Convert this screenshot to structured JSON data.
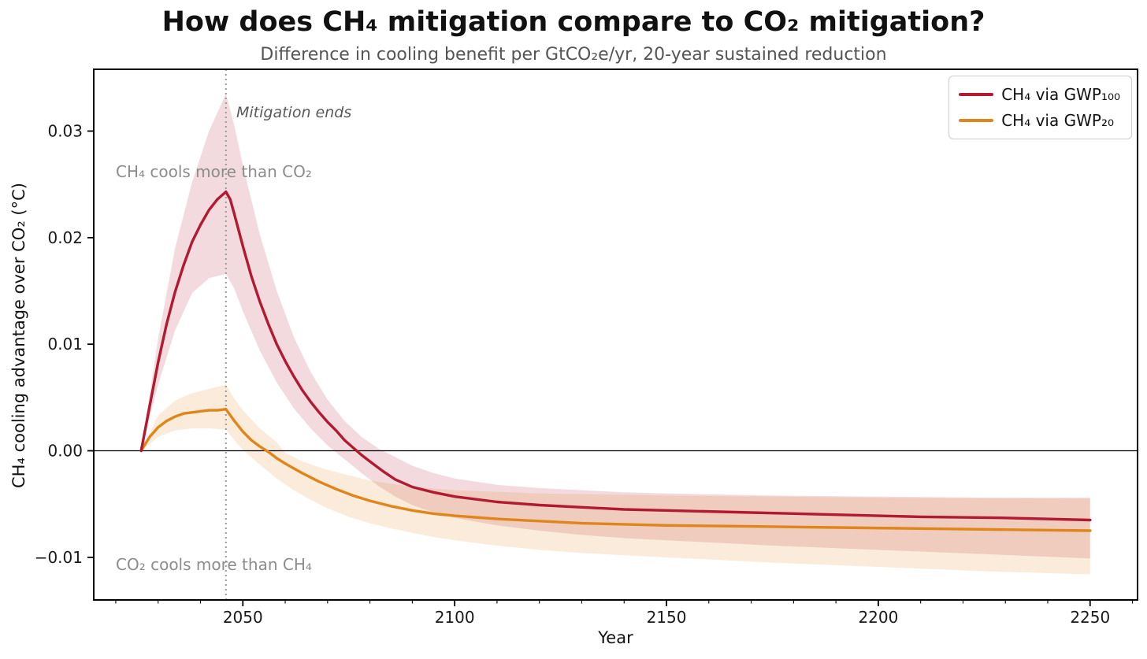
{
  "header": {
    "title": "How does CH₄ mitigation compare to CO₂ mitigation?",
    "subtitle": "Difference in cooling benefit per GtCO₂e/yr, 20-year sustained reduction"
  },
  "legend": {
    "items": [
      {
        "label": "CH₄ via GWP₁₀₀",
        "color": "#b11a30"
      },
      {
        "label": "CH₄ via GWP₂₀",
        "color": "#e08519"
      }
    ]
  },
  "annotations": {
    "mitigation_ends": "Mitigation ends",
    "ch4_cools": "CH₄ cools more than CO₂",
    "co2_cools": "CO₂ cools more than CH₄"
  },
  "colors": {
    "gwp100_line": "#b11a30",
    "gwp20_line": "#e08519",
    "gwp100_band": "rgba(177,26,48,0.16)",
    "gwp20_band": "rgba(224,133,25,0.16)",
    "vline": "#999999",
    "zero_line": "#000000",
    "spine": "#000000",
    "tick_label": "#1a1a1a"
  },
  "chart_data": {
    "type": "line",
    "title": "How does CH₄ mitigation compare to CO₂ mitigation?",
    "subtitle": "Difference in cooling benefit per GtCO₂e/yr, 20-year sustained reduction",
    "xlabel": "Year",
    "ylabel": "CH₄ cooling advantage over CO₂ (°C)",
    "xlim": [
      2014.8,
      2261.2
    ],
    "ylim": [
      -0.014,
      0.0358
    ],
    "grid": false,
    "legend_position": "upper right",
    "xticks": [
      {
        "v": 2050,
        "label": "2050"
      },
      {
        "v": 2100,
        "label": "2100"
      },
      {
        "v": 2150,
        "label": "2150"
      },
      {
        "v": 2200,
        "label": "2200"
      },
      {
        "v": 2250,
        "label": "2250"
      }
    ],
    "x_minor_ticks": [
      2020,
      2030,
      2040,
      2060,
      2070,
      2080,
      2090,
      2110,
      2120,
      2130,
      2140,
      2160,
      2170,
      2180,
      2190,
      2210,
      2220,
      2230,
      2240,
      2260
    ],
    "yticks": [
      {
        "v": 0.03,
        "label": "0.03"
      },
      {
        "v": 0.02,
        "label": "0.02"
      },
      {
        "v": 0.01,
        "label": "0.01"
      },
      {
        "v": 0.0,
        "label": "0.00"
      },
      {
        "v": -0.01,
        "label": "−0.01"
      }
    ],
    "zero_line": 0.0,
    "vline": {
      "x": 2046,
      "label": "Mitigation ends",
      "style": "dotted"
    },
    "series": [
      {
        "name": "CH₄ via GWP₁₀₀",
        "color": "#b11a30",
        "band_color": "rgba(177,26,48,0.16)",
        "points": [
          [
            2026,
            0.0
          ],
          [
            2028,
            0.0042
          ],
          [
            2030,
            0.0083
          ],
          [
            2032,
            0.0119
          ],
          [
            2034,
            0.0149
          ],
          [
            2036,
            0.0174
          ],
          [
            2038,
            0.0196
          ],
          [
            2040,
            0.0212
          ],
          [
            2042,
            0.0226
          ],
          [
            2044,
            0.0236
          ],
          [
            2046,
            0.0243
          ],
          [
            2047,
            0.0236
          ],
          [
            2048,
            0.0222
          ],
          [
            2050,
            0.0192
          ],
          [
            2052,
            0.0164
          ],
          [
            2054,
            0.014
          ],
          [
            2056,
            0.0119
          ],
          [
            2058,
            0.01
          ],
          [
            2060,
            0.0084
          ],
          [
            2062,
            0.007
          ],
          [
            2064,
            0.0057
          ],
          [
            2066,
            0.0046
          ],
          [
            2068,
            0.0036
          ],
          [
            2070,
            0.0027
          ],
          [
            2072,
            0.0019
          ],
          [
            2074,
            0.001
          ],
          [
            2076,
            0.0003
          ],
          [
            2078,
            -0.0004
          ],
          [
            2080,
            -0.001
          ],
          [
            2083,
            -0.0019
          ],
          [
            2086,
            -0.0027
          ],
          [
            2090,
            -0.0034
          ],
          [
            2095,
            -0.0039
          ],
          [
            2100,
            -0.0043
          ],
          [
            2110,
            -0.0048
          ],
          [
            2120,
            -0.0051
          ],
          [
            2130,
            -0.0053
          ],
          [
            2140,
            -0.0055
          ],
          [
            2150,
            -0.0056
          ],
          [
            2170,
            -0.0058
          ],
          [
            2190,
            -0.006
          ],
          [
            2210,
            -0.0062
          ],
          [
            2230,
            -0.0063
          ],
          [
            2250,
            -0.0065
          ]
        ],
        "band_upper": [
          [
            2026,
            0.0
          ],
          [
            2030,
            0.0105
          ],
          [
            2034,
            0.019
          ],
          [
            2038,
            0.0252
          ],
          [
            2042,
            0.03
          ],
          [
            2046,
            0.0335
          ],
          [
            2048,
            0.0305
          ],
          [
            2050,
            0.0268
          ],
          [
            2054,
            0.0203
          ],
          [
            2058,
            0.015
          ],
          [
            2062,
            0.0107
          ],
          [
            2066,
            0.0074
          ],
          [
            2070,
            0.0048
          ],
          [
            2074,
            0.0028
          ],
          [
            2078,
            0.0013
          ],
          [
            2082,
            0.0002
          ],
          [
            2086,
            -0.0006
          ],
          [
            2090,
            -0.0014
          ],
          [
            2095,
            -0.0021
          ],
          [
            2100,
            -0.0026
          ],
          [
            2110,
            -0.0032
          ],
          [
            2120,
            -0.0035
          ],
          [
            2130,
            -0.0037
          ],
          [
            2140,
            -0.0039
          ],
          [
            2150,
            -0.004
          ],
          [
            2175,
            -0.0042
          ],
          [
            2200,
            -0.0043
          ],
          [
            2225,
            -0.0044
          ],
          [
            2250,
            -0.0044
          ]
        ],
        "band_lower": [
          [
            2026,
            0.0
          ],
          [
            2030,
            0.0062
          ],
          [
            2034,
            0.0113
          ],
          [
            2038,
            0.0148
          ],
          [
            2042,
            0.0162
          ],
          [
            2046,
            0.0166
          ],
          [
            2048,
            0.0152
          ],
          [
            2050,
            0.0131
          ],
          [
            2054,
            0.0094
          ],
          [
            2058,
            0.0064
          ],
          [
            2062,
            0.004
          ],
          [
            2066,
            0.0021
          ],
          [
            2070,
            0.0005
          ],
          [
            2074,
            -0.0008
          ],
          [
            2078,
            -0.0021
          ],
          [
            2082,
            -0.0033
          ],
          [
            2086,
            -0.0043
          ],
          [
            2090,
            -0.0051
          ],
          [
            2095,
            -0.0058
          ],
          [
            2100,
            -0.0063
          ],
          [
            2110,
            -0.007
          ],
          [
            2120,
            -0.0075
          ],
          [
            2130,
            -0.0079
          ],
          [
            2140,
            -0.0082
          ],
          [
            2150,
            -0.0084
          ],
          [
            2175,
            -0.0089
          ],
          [
            2200,
            -0.0093
          ],
          [
            2225,
            -0.0097
          ],
          [
            2250,
            -0.0101
          ]
        ]
      },
      {
        "name": "CH₄ via GWP₂₀",
        "color": "#e08519",
        "band_color": "rgba(224,133,25,0.16)",
        "points": [
          [
            2026,
            0.0
          ],
          [
            2028,
            0.0013
          ],
          [
            2030,
            0.0022
          ],
          [
            2032,
            0.0028
          ],
          [
            2034,
            0.0032
          ],
          [
            2036,
            0.0035
          ],
          [
            2038,
            0.0036
          ],
          [
            2040,
            0.0037
          ],
          [
            2042,
            0.0038
          ],
          [
            2044,
            0.0038
          ],
          [
            2046,
            0.0039
          ],
          [
            2048,
            0.0028
          ],
          [
            2050,
            0.0018
          ],
          [
            2052,
            0.001
          ],
          [
            2054,
            0.0004
          ],
          [
            2056,
            -0.0001
          ],
          [
            2058,
            -0.0007
          ],
          [
            2060,
            -0.0012
          ],
          [
            2064,
            -0.0021
          ],
          [
            2068,
            -0.0029
          ],
          [
            2072,
            -0.0036
          ],
          [
            2076,
            -0.0042
          ],
          [
            2080,
            -0.0047
          ],
          [
            2085,
            -0.0052
          ],
          [
            2090,
            -0.0056
          ],
          [
            2095,
            -0.0059
          ],
          [
            2100,
            -0.0061
          ],
          [
            2110,
            -0.0064
          ],
          [
            2120,
            -0.0066
          ],
          [
            2130,
            -0.0068
          ],
          [
            2140,
            -0.0069
          ],
          [
            2150,
            -0.007
          ],
          [
            2170,
            -0.0071
          ],
          [
            2190,
            -0.0072
          ],
          [
            2210,
            -0.0073
          ],
          [
            2230,
            -0.0074
          ],
          [
            2250,
            -0.0075
          ]
        ],
        "band_upper": [
          [
            2026,
            0.0
          ],
          [
            2030,
            0.0033
          ],
          [
            2034,
            0.0047
          ],
          [
            2038,
            0.0054
          ],
          [
            2042,
            0.0058
          ],
          [
            2046,
            0.0062
          ],
          [
            2048,
            0.0049
          ],
          [
            2050,
            0.0038
          ],
          [
            2054,
            0.0021
          ],
          [
            2058,
            0.0008
          ],
          [
            2060,
            -0.0002
          ],
          [
            2064,
            -0.001
          ],
          [
            2070,
            -0.0018
          ],
          [
            2080,
            -0.0028
          ],
          [
            2090,
            -0.0034
          ],
          [
            2100,
            -0.0037
          ],
          [
            2120,
            -0.004
          ],
          [
            2150,
            -0.0042
          ],
          [
            2200,
            -0.0044
          ],
          [
            2250,
            -0.0045
          ]
        ],
        "band_lower": [
          [
            2026,
            0.0
          ],
          [
            2030,
            0.0013
          ],
          [
            2034,
            0.0019
          ],
          [
            2038,
            0.0021
          ],
          [
            2042,
            0.0021
          ],
          [
            2046,
            0.002
          ],
          [
            2048,
            0.001
          ],
          [
            2050,
            0.0001
          ],
          [
            2054,
            -0.0013
          ],
          [
            2058,
            -0.0026
          ],
          [
            2062,
            -0.0037
          ],
          [
            2066,
            -0.0046
          ],
          [
            2070,
            -0.0054
          ],
          [
            2075,
            -0.0062
          ],
          [
            2080,
            -0.0068
          ],
          [
            2085,
            -0.0073
          ],
          [
            2090,
            -0.0077
          ],
          [
            2095,
            -0.0081
          ],
          [
            2100,
            -0.0084
          ],
          [
            2110,
            -0.0089
          ],
          [
            2120,
            -0.0093
          ],
          [
            2130,
            -0.0096
          ],
          [
            2140,
            -0.0098
          ],
          [
            2150,
            -0.01
          ],
          [
            2175,
            -0.0105
          ],
          [
            2200,
            -0.0109
          ],
          [
            2225,
            -0.0113
          ],
          [
            2250,
            -0.0116
          ]
        ]
      }
    ]
  }
}
